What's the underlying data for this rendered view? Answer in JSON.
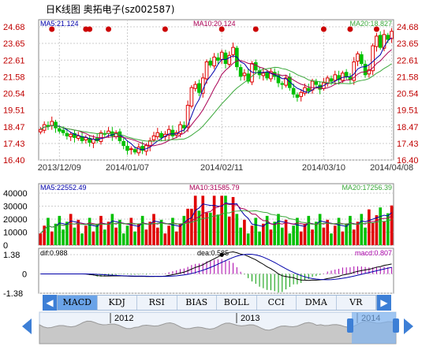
{
  "title": "日K线图  奥拓电子(sz002587)",
  "colors": {
    "up": "#e00000",
    "down": "#00c000",
    "ma5": "#0000aa",
    "ma10": "#aa0055",
    "ma20": "#3aa83a",
    "grid": "#cccccc",
    "axis": "#c00000"
  },
  "tabs": [
    {
      "label": "MACD",
      "active": true
    },
    {
      "label": "KDJ"
    },
    {
      "label": "RSI"
    },
    {
      "label": "BIAS"
    },
    {
      "label": "BOLL"
    },
    {
      "label": "CCI"
    },
    {
      "label": "DMA"
    },
    {
      "label": "VR"
    }
  ],
  "nav": {
    "prev": "◀",
    "next": "▶"
  },
  "chart_data": [
    {
      "type": "candlestick",
      "legend": {
        "ma5": "MA5:21.124",
        "ma10": "MA10:20.124",
        "ma20": "MA20:18.827"
      },
      "y_ticks": [
        "24.68",
        "23.65",
        "22.61",
        "21.58",
        "20.54",
        "19.51",
        "18.47",
        "17.43",
        "16.40"
      ],
      "ylim": [
        16.4,
        24.68
      ],
      "x_labels": [
        "2013/12/09",
        "2014/01/07",
        "2014/02/11",
        "2014/03/10",
        "2014/04/08"
      ],
      "x_label_index": [
        5,
        23,
        48,
        75,
        93
      ],
      "close": [
        18.3,
        18.6,
        18.5,
        18.8,
        18.4,
        18.2,
        18.1,
        17.9,
        18.0,
        17.8,
        17.9,
        17.6,
        17.8,
        17.5,
        17.7,
        17.6,
        18.1,
        18.0,
        18.2,
        17.9,
        18.1,
        17.6,
        17.3,
        17.0,
        17.1,
        16.9,
        17.2,
        17.0,
        17.3,
        17.6,
        17.9,
        18.1,
        17.8,
        18.0,
        18.3,
        17.9,
        18.1,
        18.6,
        18.4,
        19.8,
        20.9,
        21.1,
        20.6,
        21.5,
        22.5,
        22.3,
        22.8,
        22.6,
        23.1,
        22.4,
        22.9,
        23.4,
        22.2,
        21.6,
        21.8,
        21.3,
        22.4,
        22.0,
        21.7,
        21.8,
        21.5,
        21.9,
        21.6,
        21.2,
        21.1,
        21.5,
        20.9,
        20.5,
        20.3,
        20.6,
        20.9,
        20.7,
        21.3,
        21.1,
        20.8,
        21.2,
        21.5,
        21.3,
        21.7,
        21.4,
        21.8,
        21.6,
        21.4,
        22.5,
        23.0,
        22.4,
        21.7,
        22.0,
        23.5,
        24.1,
        23.4,
        24.2,
        23.9,
        24.4
      ],
      "red_dots_index": [
        3,
        12,
        13,
        18,
        33,
        48,
        57,
        75,
        82,
        89
      ],
      "annotation": "24.68"
    },
    {
      "type": "bar",
      "legend": {
        "ma5": "MA5:22552.49",
        "ma10": "MA10:31585.79",
        "ma20": "MA20:17256.39"
      },
      "y_ticks": [
        "40000",
        "30000",
        "20000",
        "10000",
        "0"
      ],
      "ylim": [
        0,
        40000
      ]
    },
    {
      "type": "macd",
      "legend": {
        "dif": "dif:0.988",
        "dea": "dea:0.585",
        "macd": "macd:0.807"
      },
      "y_ticks": [
        "1.38",
        "0",
        "-1.38"
      ],
      "ylim": [
        -1.38,
        1.38
      ]
    },
    {
      "type": "area",
      "x_labels": [
        "2012",
        "2013",
        "2014"
      ]
    }
  ]
}
